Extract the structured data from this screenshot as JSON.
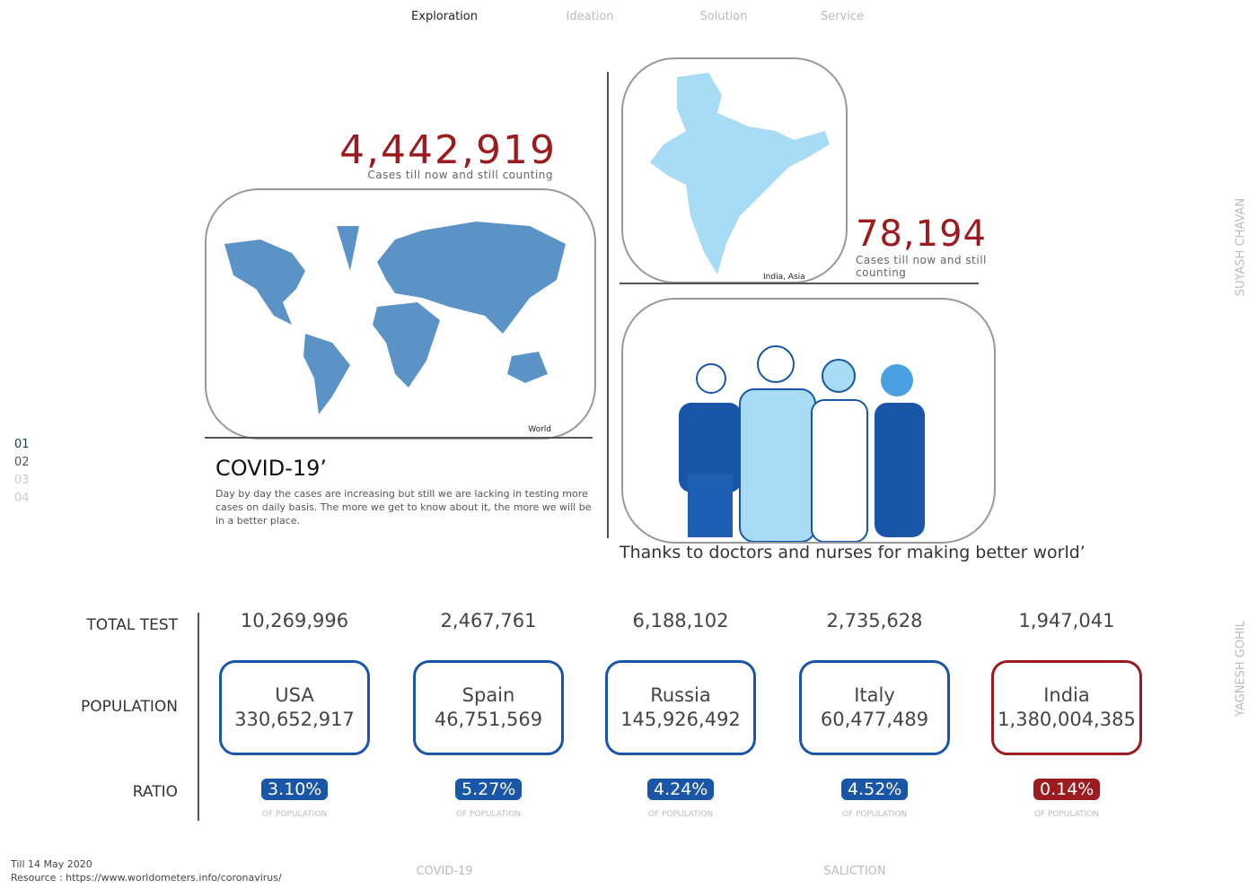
{
  "nav": [
    "Exploration",
    "Ideation",
    "Solution",
    "Service"
  ],
  "world": {
    "count": "4,442,919",
    "caption": "Cases till now and still counting",
    "label": "World"
  },
  "india": {
    "count": "78,194",
    "caption": "Cases till now and still counting",
    "label": "India, Asia"
  },
  "covid": {
    "title": "COVID-19’",
    "text": "Day by day the cases are increasing but still we are lacking in testing more cases on daily basis. The more we get to know about it, the more we will be in a better place."
  },
  "doctors_caption": "Thanks to doctors and nurses for making better world’",
  "page_numbers": [
    "01",
    "02",
    "03",
    "04"
  ],
  "side_names": [
    "SUYASH CHAVAN",
    "YAGNESH GOHIL"
  ],
  "table": {
    "row_labels": [
      "TOTAL TEST",
      "POPULATION",
      "RATIO"
    ],
    "countries": [
      {
        "name": "USA",
        "tests": "10,269,996",
        "population": "330,652,917",
        "ratio": "3.10%",
        "ratio_note": "OF POPULATION"
      },
      {
        "name": "Spain",
        "tests": "2,467,761",
        "population": "46,751,569",
        "ratio": "5.27%",
        "ratio_note": "OF POPULATION"
      },
      {
        "name": "Russia",
        "tests": "6,188,102",
        "population": "145,926,492",
        "ratio": "4.24%",
        "ratio_note": "OF POPULATION"
      },
      {
        "name": "Italy",
        "tests": "2,735,628",
        "population": "60,477,489",
        "ratio": "4.52%",
        "ratio_note": "OF POPULATION"
      },
      {
        "name": "India",
        "tests": "1,947,041",
        "population": "1,380,004,385",
        "ratio": "0.14%",
        "ratio_note": "OF POPULATION"
      }
    ]
  },
  "footer": {
    "date": "Till 14 May 2020",
    "source": "Resource : https://www.worldometers.info/coronavirus/",
    "left": "COVID-19",
    "right": "SALICTION"
  }
}
